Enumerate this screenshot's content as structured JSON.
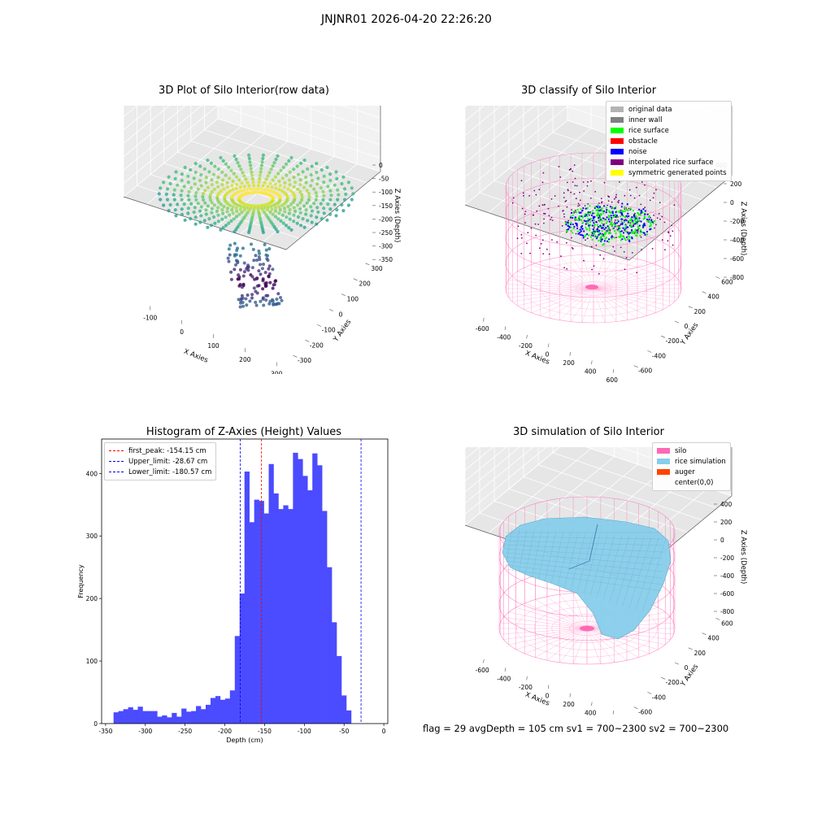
{
  "suptitle": "JNJNR01 2026-04-20 22:26:20",
  "panels": {
    "raw": {
      "title": "3D Plot of Silo Interior(row data)",
      "xlabel": "X Axies",
      "ylabel": "Y Axies",
      "zlabel": "Z Axies (Depth)",
      "xticks": [
        "-100",
        "0",
        "100",
        "200",
        "300"
      ],
      "yticks": [
        "-300",
        "-200",
        "-100",
        "0",
        "100",
        "200",
        "300"
      ],
      "zticks": [
        "0",
        "-50",
        "-100",
        "-150",
        "-200",
        "-250",
        "-300",
        "-350"
      ]
    },
    "classify": {
      "title": "3D classify of Silo Interior",
      "xlabel": "X Axies",
      "ylabel": "Y Axies",
      "zlabel": "Z Axies (Depth)",
      "xticks": [
        "-600",
        "-400",
        "-200",
        "0",
        "200",
        "400",
        "600"
      ],
      "yticks": [
        "-600",
        "-400",
        "-200",
        "0",
        "200",
        "400",
        "600"
      ],
      "zticks": [
        "200",
        "0",
        "-200",
        "-400",
        "-600",
        "-800"
      ],
      "ztop": "400",
      "legend": [
        {
          "label": "original data",
          "color": "#b3b3b3"
        },
        {
          "label": "inner wall",
          "color": "#808080"
        },
        {
          "label": "rice surface",
          "color": "#00ff00"
        },
        {
          "label": "obstacle",
          "color": "#ff0000"
        },
        {
          "label": "noise",
          "color": "#0000ff"
        },
        {
          "label": "interpolated rice surface",
          "color": "#800080"
        },
        {
          "label": "symmetric generated points",
          "color": "#ffff00"
        }
      ]
    },
    "simulation": {
      "title": "3D simulation of Silo Interior",
      "xlabel": "X Axies",
      "ylabel": "Y Axies",
      "zlabel": "Z Axies (Depth)",
      "xticks": [
        "-600",
        "-400",
        "-200",
        "0",
        "200",
        "400",
        "600"
      ],
      "yticks": [
        "-600",
        "-400",
        "-200",
        "0",
        "200",
        "400",
        "600"
      ],
      "zticks": [
        "400",
        "200",
        "0",
        "-200",
        "-400",
        "-600",
        "-800"
      ],
      "legend": [
        {
          "label": "silo",
          "color": "#ff69b4"
        },
        {
          "label": "rice simulation",
          "color": "#87ceeb"
        },
        {
          "label": "auger",
          "color": "#ff4500"
        },
        {
          "label": "center(0,0)",
          "color": ""
        }
      ]
    }
  },
  "footer": "flag = 29  avgDepth = 105 cm  sv1 = 700~2300  sv2 = 700~2300",
  "chart_data": [
    {
      "type": "heatmap",
      "title": "3D Plot of Silo Interior(row data)",
      "xlabel": "X Axies",
      "ylabel": "Y Axies",
      "zlabel": "Z Axies (Depth)",
      "xlim": [
        -150,
        330
      ],
      "ylim": [
        -330,
        330
      ],
      "zlim": [
        -350,
        0
      ]
    },
    {
      "type": "scatter",
      "title": "3D classify of Silo Interior",
      "xlabel": "X Axies",
      "ylabel": "Y Axies",
      "zlabel": "Z Axies (Depth)",
      "xlim": [
        -650,
        650
      ],
      "ylim": [
        -650,
        650
      ],
      "zlim": [
        -850,
        400
      ]
    },
    {
      "type": "bar",
      "title": "Histogram of Z-Axies (Height) Values",
      "xlabel": "Depth (cm)",
      "ylabel": "Frequency",
      "xlim": [
        -355,
        5
      ],
      "ylim": [
        0,
        455
      ],
      "xticks": [
        -350,
        -300,
        -250,
        -200,
        -150,
        -100,
        -50,
        0
      ],
      "yticks": [
        0,
        100,
        200,
        300,
        400
      ],
      "bin_start": -340,
      "bin_width": 6.1,
      "values": [
        18,
        20,
        23,
        26,
        22,
        27,
        20,
        20,
        20,
        11,
        13,
        10,
        17,
        11,
        24,
        19,
        20,
        28,
        23,
        30,
        41,
        44,
        38,
        40,
        53,
        140,
        208,
        403,
        322,
        358,
        356,
        336,
        415,
        368,
        343,
        349,
        343,
        433,
        423,
        396,
        373,
        432,
        413,
        340,
        250,
        162,
        108,
        45,
        21
      ],
      "lines": [
        {
          "label": "first_peak: -154.15 cm",
          "x": -154.15,
          "color": "#ff0000"
        },
        {
          "label": "Upper_limit: -28.67 cm",
          "x": -28.67,
          "color": "#0000ff"
        },
        {
          "label": "Lower_limit: -180.57 cm",
          "x": -180.57,
          "color": "#0000ff"
        }
      ],
      "bar_color": "#4b4bff"
    },
    {
      "type": "area",
      "title": "3D simulation of Silo Interior",
      "xlabel": "X Axies",
      "ylabel": "Y Axies",
      "zlabel": "Z Axies (Depth)",
      "xlim": [
        -650,
        650
      ],
      "ylim": [
        -650,
        650
      ],
      "zlim": [
        -850,
        450
      ]
    }
  ]
}
